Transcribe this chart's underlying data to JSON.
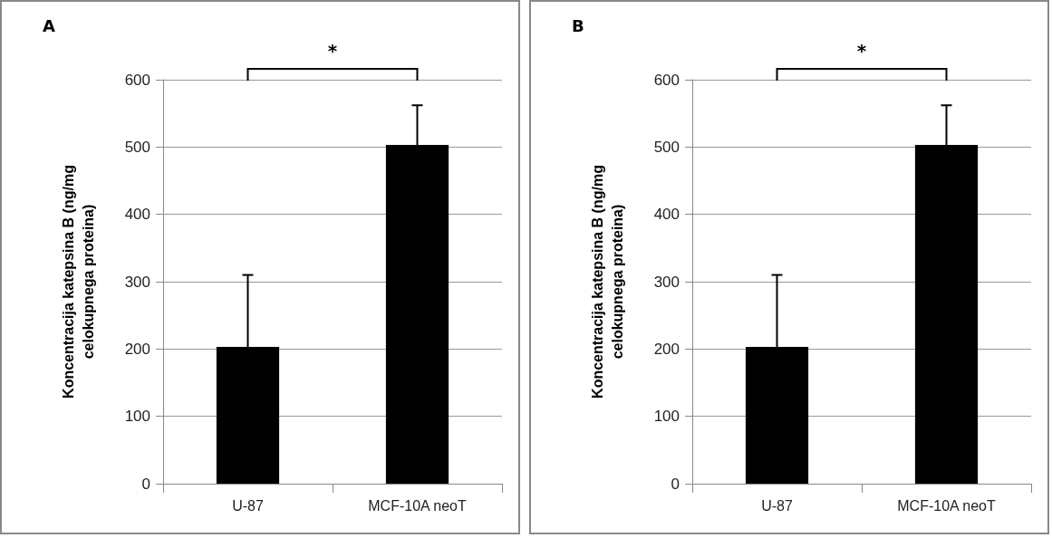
{
  "chart_data": [
    {
      "type": "bar",
      "title": "A",
      "ylabel": "Koncentracija katepsina B (ng/mg\ncelokupnega proteina)",
      "categories": [
        "U-87",
        "MCF-10A neoT"
      ],
      "values": [
        203,
        503
      ],
      "errors": [
        107,
        59
      ],
      "color": "#000000",
      "ylim": [
        0,
        600
      ],
      "yticks": [
        0,
        100,
        200,
        300,
        400,
        500,
        600
      ],
      "grid": "y",
      "annotations": [
        "*"
      ]
    },
    {
      "type": "bar",
      "title": "B",
      "ylabel": "Koncentracija katepsina B (ng/mg\ncelokupnega proteina)",
      "categories": [
        "U-87",
        "MCF-10A neoT"
      ],
      "values": [
        203,
        503
      ],
      "errors": [
        107,
        59
      ],
      "color": "#000000",
      "ylim": [
        0,
        600
      ],
      "yticks": [
        0,
        100,
        200,
        300,
        400,
        500,
        600
      ],
      "grid": "y",
      "annotations": [
        "*"
      ]
    }
  ]
}
